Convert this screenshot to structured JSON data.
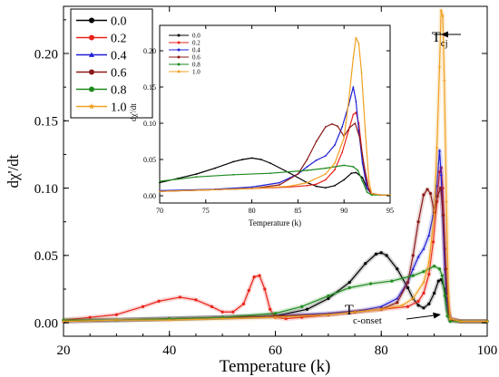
{
  "chart_data": [
    {
      "type": "line",
      "xlabel": "Temperature (k)",
      "ylabel": "dχ'/dt",
      "xlim": [
        20,
        100
      ],
      "ylim": [
        -0.01,
        0.235
      ],
      "xticks": [
        20,
        40,
        60,
        80,
        100
      ],
      "yticks": [
        0.0,
        0.05,
        0.1,
        0.15,
        0.2
      ],
      "ytick_labels": [
        "0.00",
        "0.05",
        "0.10",
        "0.15",
        "0.20"
      ],
      "legend_position": "top-left",
      "annotations": [
        {
          "text": "T",
          "sub": "cj",
          "x": 91.2,
          "y": 0.232
        },
        {
          "text": "T",
          "sub": "c-onset",
          "x": 92.4,
          "y": -0.004
        }
      ],
      "series": [
        {
          "name": "0.0",
          "color": "#000000",
          "marker": "circle",
          "x": [
            20,
            30,
            40,
            50,
            60,
            66,
            70,
            74,
            77,
            79,
            80,
            81,
            83,
            85,
            86,
            87,
            88,
            89,
            90,
            90.8,
            91.3,
            92,
            92.5,
            93,
            95,
            100
          ],
          "y": [
            0.002,
            0.002,
            0.003,
            0.004,
            0.005,
            0.01,
            0.018,
            0.03,
            0.044,
            0.051,
            0.052,
            0.05,
            0.04,
            0.026,
            0.018,
            0.013,
            0.011,
            0.014,
            0.022,
            0.031,
            0.032,
            0.025,
            0.01,
            0.003,
            0.001,
            0.001
          ]
        },
        {
          "name": "0.2",
          "color": "#e8231a",
          "marker": "circle",
          "x": [
            20,
            25,
            30,
            35,
            38,
            42,
            45,
            48,
            50,
            52,
            54,
            55,
            56,
            57,
            58,
            59,
            60,
            62,
            65,
            70,
            75,
            80,
            85,
            87,
            88,
            89,
            89.8,
            90.5,
            91,
            91.3,
            91.6,
            92,
            92.5,
            93,
            95,
            100
          ],
          "y": [
            0.002,
            0.004,
            0.006,
            0.012,
            0.016,
            0.019,
            0.017,
            0.012,
            0.008,
            0.008,
            0.014,
            0.024,
            0.034,
            0.035,
            0.025,
            0.01,
            0.004,
            0.003,
            0.004,
            0.006,
            0.008,
            0.01,
            0.012,
            0.016,
            0.022,
            0.036,
            0.06,
            0.09,
            0.112,
            0.115,
            0.1,
            0.055,
            0.015,
            0.003,
            0.001,
            0.001
          ]
        },
        {
          "name": "0.4",
          "color": "#1f1fd6",
          "marker": "triangle",
          "x": [
            20,
            30,
            40,
            50,
            60,
            70,
            76,
            80,
            83,
            85,
            86,
            87,
            88,
            89,
            89.8,
            90.5,
            91,
            91.3,
            91.6,
            92,
            92.5,
            93,
            95,
            100
          ],
          "y": [
            0.001,
            0.002,
            0.003,
            0.004,
            0.005,
            0.007,
            0.009,
            0.012,
            0.018,
            0.03,
            0.04,
            0.049,
            0.055,
            0.065,
            0.08,
            0.102,
            0.128,
            0.11,
            0.08,
            0.04,
            0.01,
            0.002,
            0.001,
            0.001
          ]
        },
        {
          "name": "0.6",
          "color": "#8b1a1a",
          "marker": "circle",
          "x": [
            20,
            30,
            40,
            50,
            60,
            70,
            75,
            80,
            83,
            85,
            86,
            87,
            88,
            88.7,
            89.3,
            90,
            90.6,
            91.2,
            91.7,
            92.2,
            92.7,
            93,
            95,
            100
          ],
          "y": [
            0.001,
            0.002,
            0.003,
            0.004,
            0.005,
            0.006,
            0.008,
            0.01,
            0.015,
            0.03,
            0.05,
            0.075,
            0.095,
            0.099,
            0.096,
            0.082,
            0.094,
            0.1,
            0.08,
            0.04,
            0.008,
            0.002,
            0.001,
            0.001
          ]
        },
        {
          "name": "0.8",
          "color": "#1e8a1e",
          "marker": "circle",
          "x": [
            20,
            30,
            40,
            50,
            60,
            65,
            70,
            74,
            78,
            82,
            86,
            88,
            90,
            91,
            91.5,
            92,
            92.5,
            93,
            95,
            100
          ],
          "y": [
            0.002,
            0.002,
            0.003,
            0.004,
            0.007,
            0.012,
            0.02,
            0.026,
            0.029,
            0.031,
            0.035,
            0.038,
            0.042,
            0.04,
            0.035,
            0.02,
            0.005,
            0.001,
            0.001,
            0.001
          ]
        },
        {
          "name": "1.0",
          "color": "#f0a020",
          "marker": "star",
          "x": [
            20,
            30,
            40,
            50,
            60,
            70,
            75,
            80,
            84,
            86,
            88,
            89,
            90,
            90.5,
            91,
            91.3,
            91.6,
            91.9,
            92.3,
            92.7,
            93,
            95,
            100
          ],
          "y": [
            0.001,
            0.002,
            0.002,
            0.003,
            0.004,
            0.006,
            0.008,
            0.01,
            0.013,
            0.018,
            0.03,
            0.045,
            0.08,
            0.13,
            0.19,
            0.232,
            0.228,
            0.18,
            0.09,
            0.02,
            0.003,
            0.001,
            0.001
          ]
        }
      ]
    },
    {
      "type": "line",
      "xlabel": "Temperature (k)",
      "ylabel": "dχ'/dt",
      "xlim": [
        70,
        95
      ],
      "ylim": [
        -0.01,
        0.235
      ],
      "xticks": [
        70,
        75,
        80,
        85,
        90,
        95
      ],
      "yticks": [
        0.0,
        0.05,
        0.1,
        0.15,
        0.2
      ],
      "ytick_labels": [
        "0.00",
        "0.05",
        "0.10",
        "0.15",
        "0.20"
      ],
      "legend_position": "top-left",
      "series": [
        {
          "name": "0.0",
          "color": "#000000",
          "x": [
            70,
            72,
            74,
            76,
            78,
            79,
            80,
            81,
            82,
            84,
            86,
            87,
            88,
            89,
            90,
            90.8,
            91.3,
            92,
            92.5,
            93,
            94,
            95
          ],
          "y": [
            0.018,
            0.024,
            0.03,
            0.038,
            0.047,
            0.05,
            0.052,
            0.05,
            0.045,
            0.032,
            0.018,
            0.013,
            0.011,
            0.014,
            0.022,
            0.031,
            0.032,
            0.025,
            0.01,
            0.003,
            0.001,
            0.001
          ]
        },
        {
          "name": "0.2",
          "color": "#e8231a",
          "x": [
            70,
            75,
            80,
            84,
            86,
            87,
            88,
            89,
            89.8,
            90.5,
            91,
            91.3,
            91.6,
            92,
            92.5,
            93,
            94,
            95
          ],
          "y": [
            0.006,
            0.008,
            0.01,
            0.012,
            0.014,
            0.016,
            0.022,
            0.036,
            0.06,
            0.09,
            0.112,
            0.115,
            0.1,
            0.055,
            0.015,
            0.003,
            0.001,
            0.001
          ]
        },
        {
          "name": "0.4",
          "color": "#1f1fd6",
          "x": [
            70,
            76,
            80,
            83,
            85,
            86,
            87,
            88,
            89,
            89.8,
            90.5,
            91,
            91.3,
            91.6,
            92,
            92.5,
            93,
            94,
            95
          ],
          "y": [
            0.007,
            0.009,
            0.012,
            0.018,
            0.03,
            0.04,
            0.049,
            0.055,
            0.07,
            0.095,
            0.125,
            0.15,
            0.13,
            0.09,
            0.045,
            0.01,
            0.002,
            0.001,
            0.001
          ]
        },
        {
          "name": "0.6",
          "color": "#8b1a1a",
          "x": [
            70,
            75,
            80,
            83,
            85,
            86,
            87,
            88,
            88.7,
            89.3,
            90,
            90.6,
            91.2,
            91.7,
            92.2,
            92.7,
            93,
            94,
            95
          ],
          "y": [
            0.006,
            0.008,
            0.01,
            0.015,
            0.03,
            0.05,
            0.075,
            0.095,
            0.099,
            0.096,
            0.082,
            0.094,
            0.1,
            0.08,
            0.04,
            0.008,
            0.002,
            0.001,
            0.001
          ]
        },
        {
          "name": "0.8",
          "color": "#1e8a1e",
          "x": [
            70,
            72,
            74,
            78,
            82,
            86,
            88,
            90,
            91,
            91.5,
            92,
            92.5,
            93,
            94,
            95
          ],
          "y": [
            0.02,
            0.023,
            0.026,
            0.029,
            0.031,
            0.035,
            0.038,
            0.042,
            0.04,
            0.035,
            0.02,
            0.005,
            0.001,
            0.001,
            0.001
          ]
        },
        {
          "name": "1.0",
          "color": "#f0a020",
          "x": [
            70,
            75,
            80,
            84,
            86,
            88,
            89,
            90,
            90.5,
            91,
            91.3,
            91.6,
            91.9,
            92.3,
            92.7,
            93,
            94,
            95
          ],
          "y": [
            0.006,
            0.008,
            0.01,
            0.013,
            0.018,
            0.03,
            0.045,
            0.08,
            0.13,
            0.19,
            0.218,
            0.21,
            0.17,
            0.09,
            0.02,
            0.003,
            0.001,
            0.001
          ]
        }
      ]
    }
  ]
}
